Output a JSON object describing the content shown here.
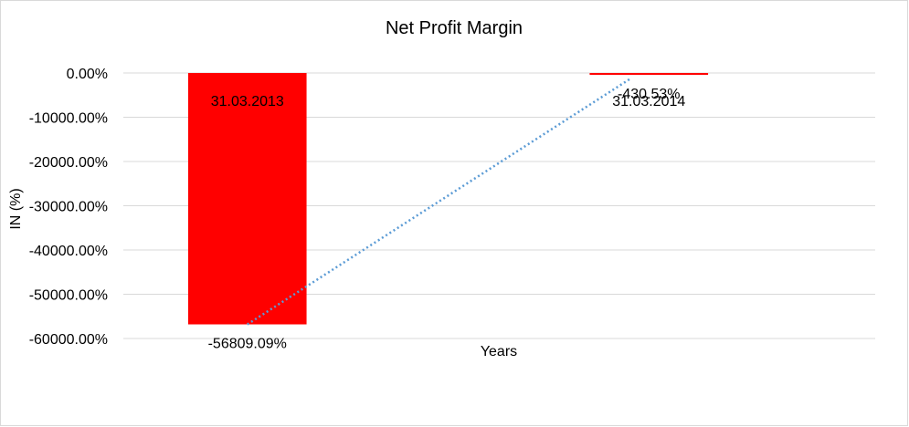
{
  "chart_data": {
    "type": "bar",
    "title": "Net Profit Margin",
    "xlabel": "Years",
    "ylabel": "IN (%)",
    "categories": [
      "31.03.2013",
      "31.03.2014"
    ],
    "values": [
      -56809.09,
      -430.53
    ],
    "data_labels": [
      "-56809.09%",
      "-430.53%"
    ],
    "ylim": [
      -60000,
      0
    ],
    "y_ticks": [
      0,
      -10000,
      -20000,
      -30000,
      -40000,
      -50000,
      -60000
    ],
    "y_tick_labels": [
      "0.00%",
      "-10000.00%",
      "-20000.00%",
      "-30000.00%",
      "-40000.00%",
      "-50000.00%",
      "-60000.00%"
    ],
    "grid": true,
    "legend": "none",
    "trendline": "linear",
    "colors": {
      "bar": "#ff0000",
      "trendline": "#5b9bd5",
      "grid": "#d9d9d9"
    }
  }
}
